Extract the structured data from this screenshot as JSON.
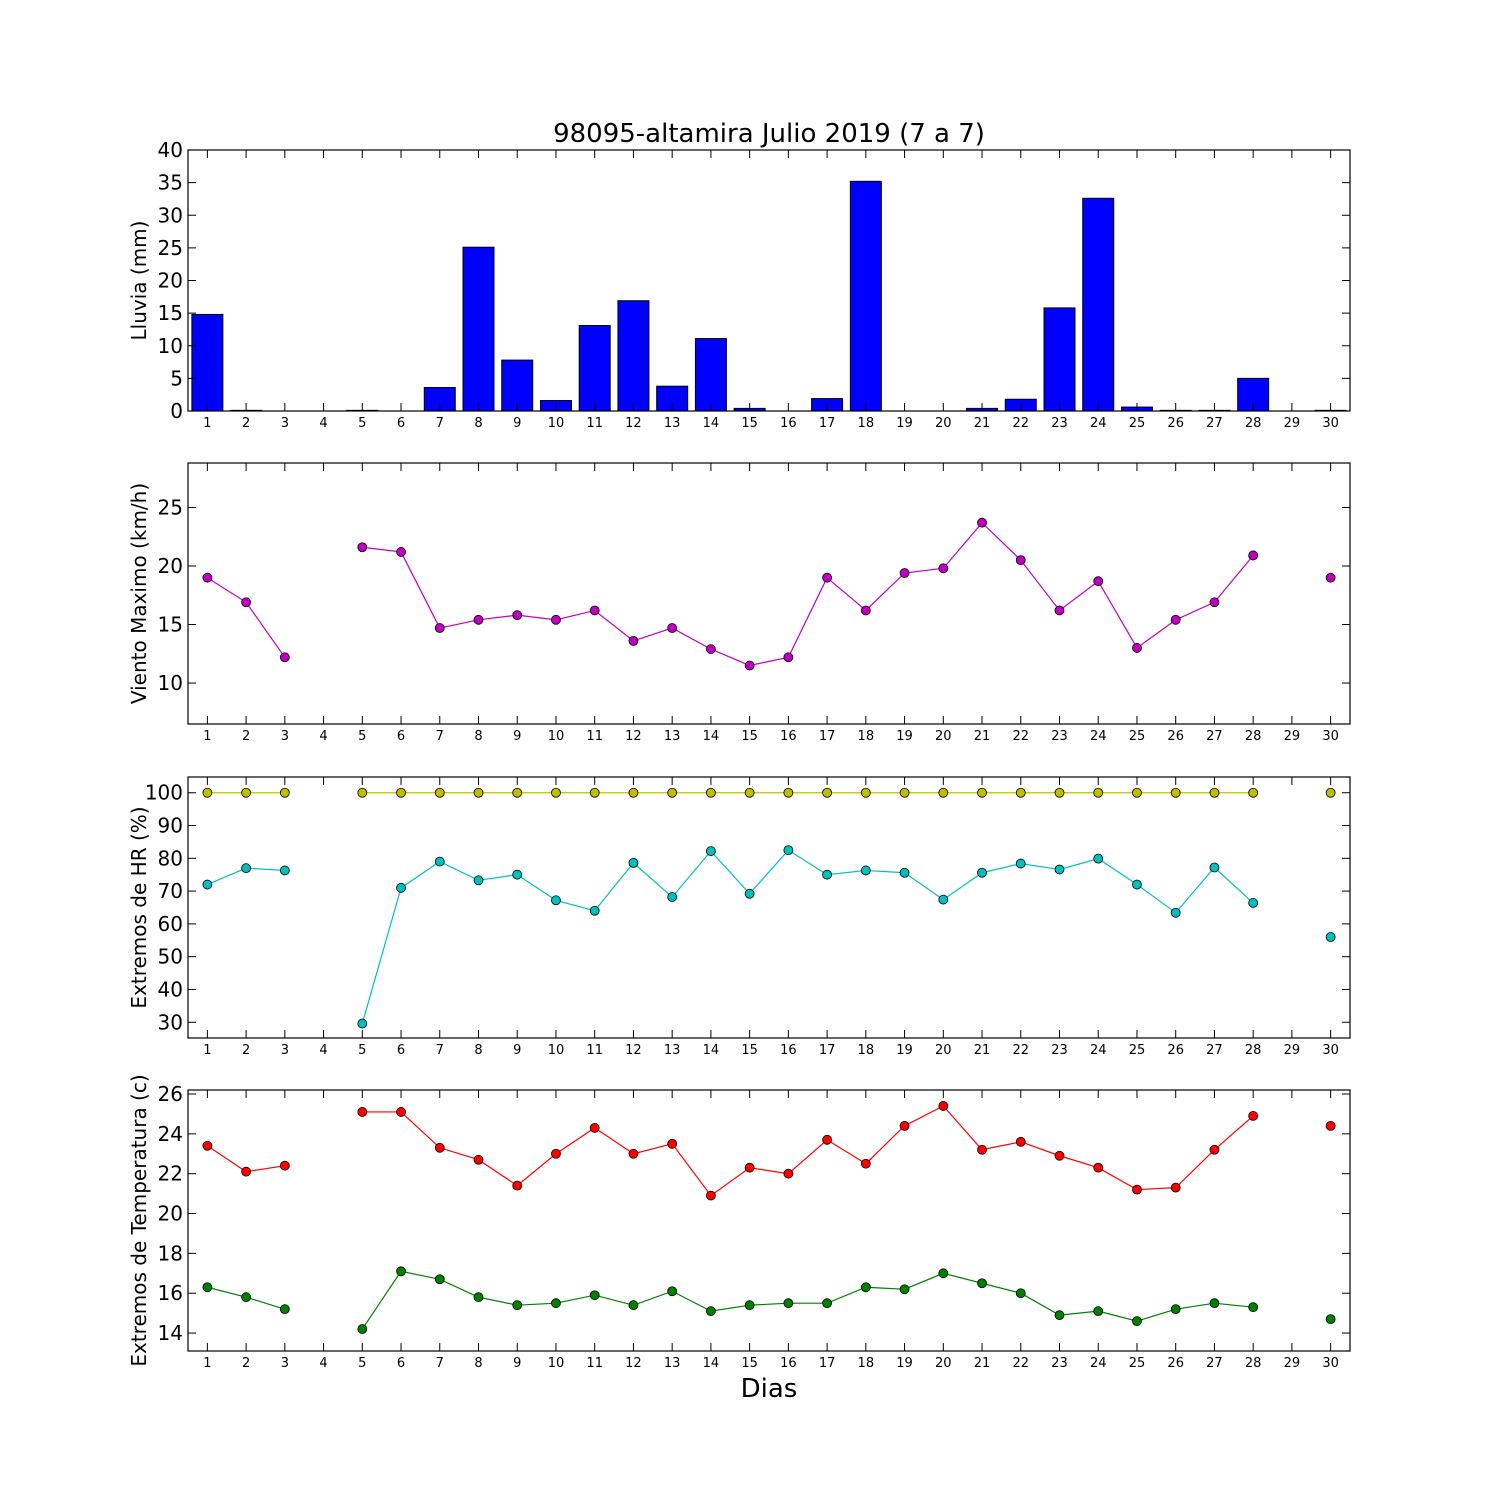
{
  "title": "98095-altamira Julio 2019  (7 a 7)",
  "xlabel": "Dias",
  "colors": {
    "rain": "#0000ff",
    "wind": "#bf00bf",
    "hr_max": "#bfbf00",
    "hr_min": "#00bfbf",
    "t_max": "#ff0000",
    "t_min": "#008000"
  },
  "chart_data": [
    {
      "id": "lluvia",
      "type": "bar",
      "ylabel": "Lluvia (mm)",
      "ylim": [
        0,
        40
      ],
      "yticks": [
        0,
        5,
        10,
        15,
        20,
        25,
        30,
        35,
        40
      ],
      "xticks": [
        1,
        2,
        3,
        4,
        5,
        6,
        7,
        8,
        9,
        10,
        11,
        12,
        13,
        14,
        15,
        16,
        17,
        18,
        19,
        20,
        21,
        22,
        23,
        24,
        25,
        26,
        27,
        28,
        29,
        30
      ],
      "grid": false,
      "series": [
        {
          "x": [
            1,
            2,
            3,
            4,
            5,
            6,
            7,
            8,
            9,
            10,
            11,
            12,
            13,
            14,
            15,
            16,
            17,
            18,
            19,
            20,
            21,
            22,
            23,
            24,
            25,
            26,
            27,
            28,
            29,
            30
          ],
          "values": [
            14.8,
            0.1,
            0,
            0,
            0.1,
            0,
            3.6,
            25.1,
            7.8,
            1.6,
            13.1,
            16.9,
            3.8,
            11.1,
            0.4,
            0,
            1.9,
            35.2,
            0,
            0,
            0.4,
            1.8,
            15.8,
            32.6,
            0.6,
            0.1,
            0.1,
            5.0,
            0,
            0.1
          ],
          "color": "#0000ff"
        }
      ]
    },
    {
      "id": "viento",
      "type": "line",
      "ylabel": "Viento Maximo (km/h)",
      "ylim": [
        6.5,
        28.8
      ],
      "yticks": [
        10,
        15,
        20,
        25
      ],
      "xticks": [
        1,
        2,
        3,
        4,
        5,
        6,
        7,
        8,
        9,
        10,
        11,
        12,
        13,
        14,
        15,
        16,
        17,
        18,
        19,
        20,
        21,
        22,
        23,
        24,
        25,
        26,
        27,
        28,
        29,
        30
      ],
      "grid": false,
      "series": [
        {
          "x": [
            1,
            2,
            3,
            4,
            5,
            6,
            7,
            8,
            9,
            10,
            11,
            12,
            13,
            14,
            15,
            16,
            17,
            18,
            19,
            20,
            21,
            22,
            23,
            24,
            25,
            26,
            27,
            28,
            29,
            30
          ],
          "values": [
            19.0,
            16.9,
            12.2,
            null,
            21.6,
            21.2,
            14.7,
            15.4,
            15.8,
            15.4,
            16.2,
            13.6,
            14.7,
            12.9,
            11.5,
            12.2,
            19.0,
            16.2,
            19.4,
            19.8,
            23.7,
            20.5,
            16.2,
            18.7,
            13.0,
            15.4,
            16.9,
            20.9,
            null,
            19.0
          ],
          "color": "#bf00bf"
        }
      ]
    },
    {
      "id": "hr",
      "type": "line",
      "ylabel": "Extremos de HR (%)",
      "ylim": [
        25.2,
        104.8
      ],
      "yticks": [
        30,
        40,
        50,
        60,
        70,
        80,
        90,
        100
      ],
      "xticks": [
        1,
        2,
        3,
        4,
        5,
        6,
        7,
        8,
        9,
        10,
        11,
        12,
        13,
        14,
        15,
        16,
        17,
        18,
        19,
        20,
        21,
        22,
        23,
        24,
        25,
        26,
        27,
        28,
        29,
        30
      ],
      "grid": false,
      "series": [
        {
          "x": [
            1,
            2,
            3,
            4,
            5,
            6,
            7,
            8,
            9,
            10,
            11,
            12,
            13,
            14,
            15,
            16,
            17,
            18,
            19,
            20,
            21,
            22,
            23,
            24,
            25,
            26,
            27,
            28,
            29,
            30
          ],
          "values": [
            100,
            100,
            100,
            null,
            100,
            100,
            100,
            100,
            100,
            100,
            100,
            100,
            100,
            100,
            100,
            100,
            100,
            100,
            100,
            100,
            100,
            100,
            100,
            100,
            100,
            100,
            100,
            100,
            null,
            100
          ],
          "color": "#bfbf00"
        },
        {
          "x": [
            1,
            2,
            3,
            4,
            5,
            6,
            7,
            8,
            9,
            10,
            11,
            12,
            13,
            14,
            15,
            16,
            17,
            18,
            19,
            20,
            21,
            22,
            23,
            24,
            25,
            26,
            27,
            28,
            29,
            30
          ],
          "values": [
            72,
            77,
            76.3,
            null,
            29.6,
            71,
            79,
            73.3,
            75,
            67.2,
            64,
            78.6,
            68.2,
            82.2,
            69.2,
            82.5,
            75,
            76.3,
            75.6,
            67.4,
            75.6,
            78.4,
            76.6,
            79.9,
            72,
            63.4,
            77.2,
            66.4,
            null,
            56
          ],
          "color": "#00bfbf"
        }
      ]
    },
    {
      "id": "temp",
      "type": "line",
      "ylabel": "Extremos de Temperatura (c)",
      "ylim": [
        13.1,
        26.2
      ],
      "yticks": [
        14,
        16,
        18,
        20,
        22,
        24,
        26
      ],
      "xticks": [
        1,
        2,
        3,
        4,
        5,
        6,
        7,
        8,
        9,
        10,
        11,
        12,
        13,
        14,
        15,
        16,
        17,
        18,
        19,
        20,
        21,
        22,
        23,
        24,
        25,
        26,
        27,
        28,
        29,
        30
      ],
      "grid": false,
      "series": [
        {
          "x": [
            1,
            2,
            3,
            4,
            5,
            6,
            7,
            8,
            9,
            10,
            11,
            12,
            13,
            14,
            15,
            16,
            17,
            18,
            19,
            20,
            21,
            22,
            23,
            24,
            25,
            26,
            27,
            28,
            29,
            30
          ],
          "values": [
            23.4,
            22.1,
            22.4,
            null,
            25.1,
            25.1,
            23.3,
            22.7,
            21.4,
            23.0,
            24.3,
            23.0,
            23.5,
            20.9,
            22.3,
            22.0,
            23.7,
            22.5,
            24.4,
            25.4,
            23.2,
            23.6,
            22.9,
            22.3,
            21.2,
            21.3,
            23.2,
            24.9,
            null,
            24.4
          ],
          "color": "#ff0000"
        },
        {
          "x": [
            1,
            2,
            3,
            4,
            5,
            6,
            7,
            8,
            9,
            10,
            11,
            12,
            13,
            14,
            15,
            16,
            17,
            18,
            19,
            20,
            21,
            22,
            23,
            24,
            25,
            26,
            27,
            28,
            29,
            30
          ],
          "values": [
            16.3,
            15.8,
            15.2,
            null,
            14.2,
            17.1,
            16.7,
            15.8,
            15.4,
            15.5,
            15.9,
            15.4,
            16.1,
            15.1,
            15.4,
            15.5,
            15.5,
            16.3,
            16.2,
            17.0,
            16.5,
            16.0,
            14.9,
            15.1,
            14.6,
            15.2,
            15.5,
            15.3,
            null,
            14.7
          ],
          "color": "#008000"
        }
      ]
    }
  ]
}
